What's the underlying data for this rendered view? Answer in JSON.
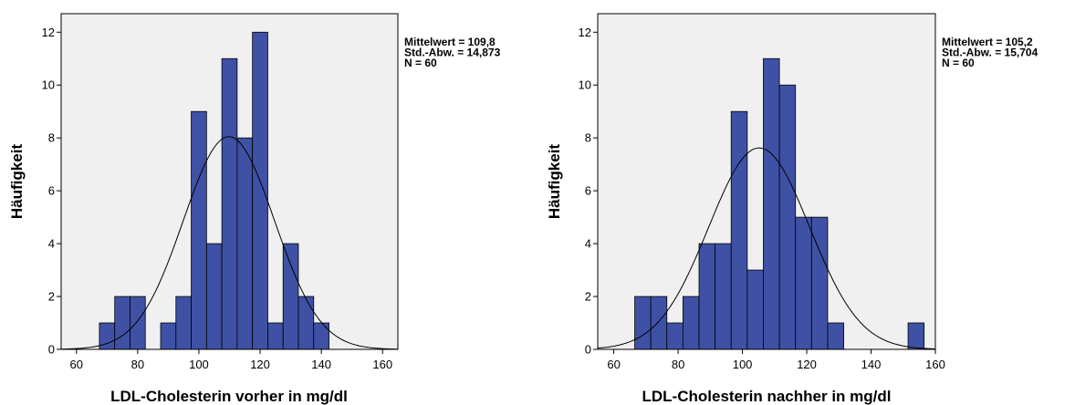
{
  "chart_data": [
    {
      "type": "bar",
      "subtype": "histogram",
      "xlabel": "LDL-Cholesterin vorher in mg/dl",
      "ylabel": "Häufigkeit",
      "xlim": [
        55,
        165
      ],
      "ylim": [
        0,
        12.7
      ],
      "x_ticks": [
        60,
        80,
        100,
        120,
        140,
        160
      ],
      "y_ticks": [
        0,
        2,
        4,
        6,
        8,
        10,
        12
      ],
      "bin_width": 5,
      "bins": [
        {
          "start": 67.5,
          "count": 1
        },
        {
          "start": 72.5,
          "count": 2
        },
        {
          "start": 77.5,
          "count": 2
        },
        {
          "start": 82.5,
          "count": 0
        },
        {
          "start": 87.5,
          "count": 1
        },
        {
          "start": 92.5,
          "count": 2
        },
        {
          "start": 97.5,
          "count": 9
        },
        {
          "start": 102.5,
          "count": 4
        },
        {
          "start": 107.5,
          "count": 11
        },
        {
          "start": 112.5,
          "count": 8
        },
        {
          "start": 117.5,
          "count": 12
        },
        {
          "start": 122.5,
          "count": 1
        },
        {
          "start": 127.5,
          "count": 4
        },
        {
          "start": 132.5,
          "count": 2
        },
        {
          "start": 137.5,
          "count": 1
        }
      ],
      "normal_curve": {
        "mean": 109.8,
        "sd": 14.873,
        "n": 60
      },
      "stats": {
        "mean_label": "Mittelwert = 109,8",
        "sd_label": "Std.-Abw. = 14,873",
        "n_label": "N = 60"
      },
      "bar_color": "#3f51a5",
      "bar_stroke": "#000000",
      "plot_bg": "#f0f0f0",
      "grid": false
    },
    {
      "type": "bar",
      "subtype": "histogram",
      "xlabel": "LDL-Cholesterin nachher in mg/dl",
      "ylabel": "Häufigkeit",
      "xlim": [
        55,
        160
      ],
      "ylim": [
        0,
        12.7
      ],
      "x_ticks": [
        60,
        80,
        100,
        120,
        140,
        160
      ],
      "y_ticks": [
        0,
        2,
        4,
        6,
        8,
        10,
        12
      ],
      "bin_width": 5,
      "bins": [
        {
          "start": 66.5,
          "count": 2
        },
        {
          "start": 71.5,
          "count": 2
        },
        {
          "start": 76.5,
          "count": 1
        },
        {
          "start": 81.5,
          "count": 2
        },
        {
          "start": 86.5,
          "count": 4
        },
        {
          "start": 91.5,
          "count": 4
        },
        {
          "start": 96.5,
          "count": 9
        },
        {
          "start": 101.5,
          "count": 3
        },
        {
          "start": 106.5,
          "count": 11
        },
        {
          "start": 111.5,
          "count": 10
        },
        {
          "start": 116.5,
          "count": 5
        },
        {
          "start": 121.5,
          "count": 5
        },
        {
          "start": 126.5,
          "count": 1
        },
        {
          "start": 131.5,
          "count": 0
        },
        {
          "start": 136.5,
          "count": 0
        },
        {
          "start": 141.5,
          "count": 0
        },
        {
          "start": 146.5,
          "count": 0
        },
        {
          "start": 151.5,
          "count": 1
        }
      ],
      "normal_curve": {
        "mean": 105.2,
        "sd": 15.704,
        "n": 60
      },
      "stats": {
        "mean_label": "Mittelwert = 105,2",
        "sd_label": "Std.-Abw. = 15,704",
        "n_label": "N = 60"
      },
      "bar_color": "#3f51a5",
      "bar_stroke": "#000000",
      "plot_bg": "#f0f0f0",
      "grid": false
    }
  ]
}
